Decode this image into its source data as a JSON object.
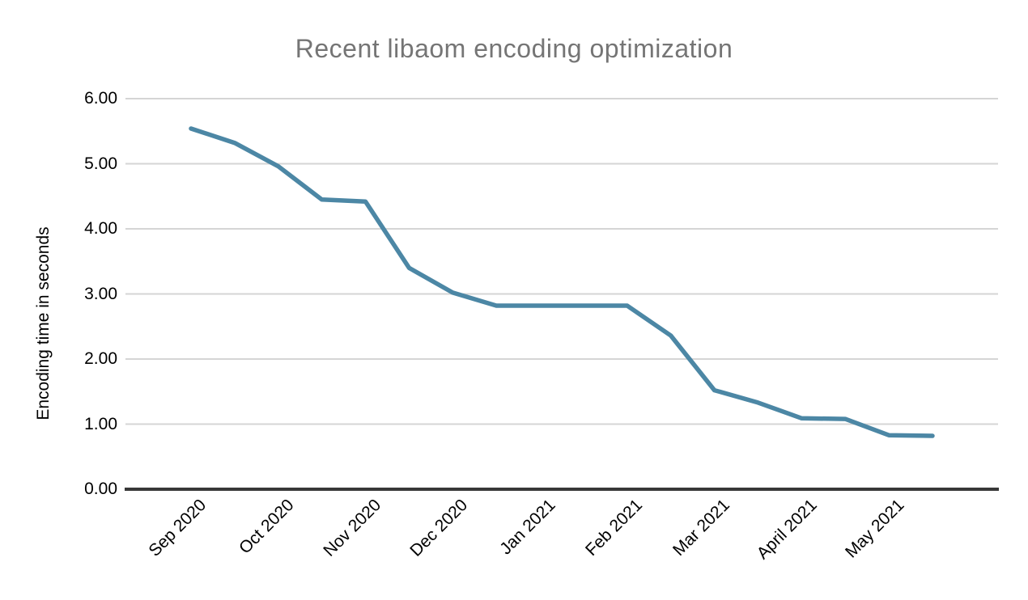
{
  "title": "Recent libaom encoding optimization",
  "chart_data": {
    "type": "line",
    "title": "Recent libaom encoding optimization",
    "xlabel": "",
    "ylabel": "Encoding time in seconds",
    "ylim": [
      0,
      6
    ],
    "y_tick_labels": [
      "0.00",
      "1.00",
      "2.00",
      "3.00",
      "4.00",
      "5.00",
      "6.00"
    ],
    "x_tick_labels": [
      "Sep 2020",
      "Oct 2020",
      "Nov 2020",
      "Dec 2020",
      "Jan 2021",
      "Feb 2021",
      "Mar 2021",
      "April 2021",
      "May 2021"
    ],
    "points_per_month": 2,
    "x_tick_point_indices": [
      0,
      2,
      4,
      6,
      8,
      10,
      12,
      14,
      16
    ],
    "values": [
      5.54,
      5.32,
      4.96,
      4.45,
      4.42,
      3.4,
      3.02,
      2.82,
      2.82,
      2.82,
      2.82,
      2.36,
      1.52,
      1.33,
      1.09,
      1.08,
      0.83,
      0.82
    ],
    "grid": true,
    "legend": "none"
  },
  "colors": {
    "line": "#4c87a5",
    "title_text": "#757575",
    "tick_text": "#000000",
    "gridline": "#d5d5d5",
    "axis_line": "#383838",
    "background": "#ffffff"
  }
}
